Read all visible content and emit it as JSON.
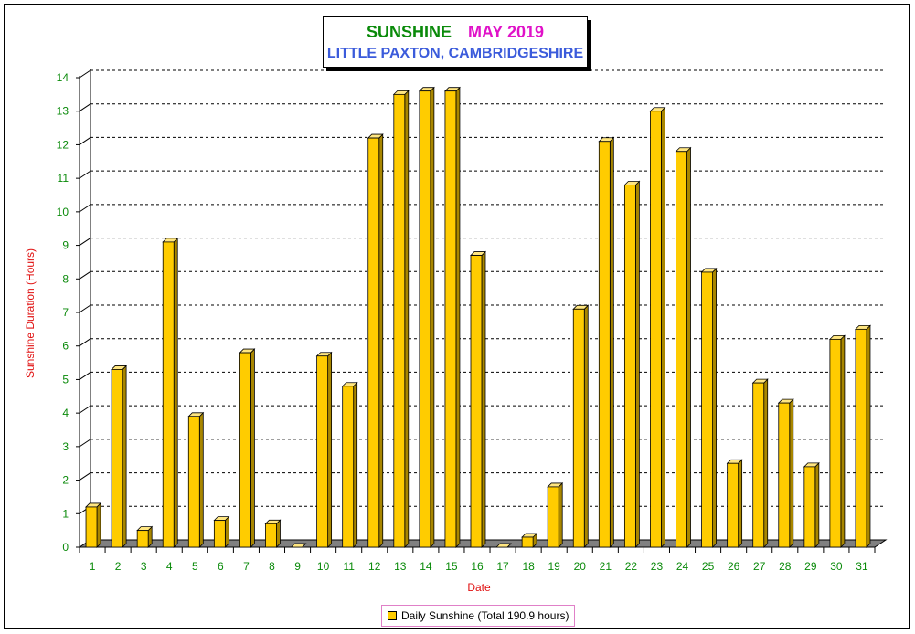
{
  "chart_data": {
    "type": "bar",
    "title": "SUNSHINE",
    "title_month": "MAY 2019",
    "subtitle": "LITTLE PAXTON, CAMBRIDGESHIRE",
    "xlabel": "Date",
    "ylabel": "Sunshine Duration (Hours)",
    "ylim": [
      0,
      14
    ],
    "yticks": [
      0,
      1,
      2,
      3,
      4,
      5,
      6,
      7,
      8,
      9,
      10,
      11,
      12,
      13,
      14
    ],
    "grid": true,
    "legend_position": "bottom",
    "categories": [
      "1",
      "2",
      "3",
      "4",
      "5",
      "6",
      "7",
      "8",
      "9",
      "10",
      "11",
      "12",
      "13",
      "14",
      "15",
      "16",
      "17",
      "18",
      "19",
      "20",
      "21",
      "22",
      "23",
      "24",
      "25",
      "26",
      "27",
      "28",
      "29",
      "30",
      "31"
    ],
    "series": [
      {
        "name": "Daily Sunshine (Total 190.9 hours)",
        "color": "#ffcc00",
        "values": [
          1.2,
          5.3,
          0.5,
          9.1,
          3.9,
          0.8,
          5.8,
          0.7,
          0.0,
          5.7,
          4.8,
          12.2,
          13.5,
          13.6,
          13.6,
          8.7,
          0.0,
          0.3,
          1.8,
          7.1,
          12.1,
          10.8,
          13.0,
          11.8,
          8.2,
          2.5,
          4.9,
          4.3,
          2.4,
          6.2,
          6.5
        ]
      }
    ]
  }
}
